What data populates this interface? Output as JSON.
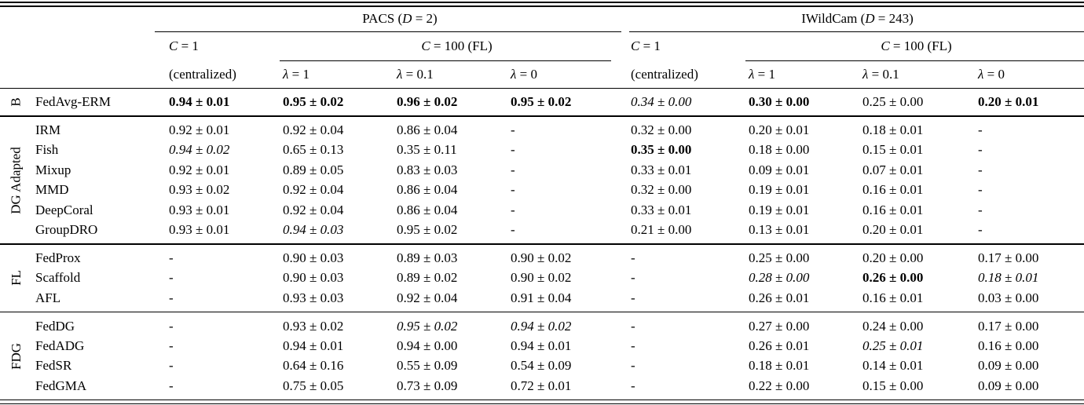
{
  "header": {
    "datasets": [
      {
        "prefix": "PACS (",
        "var": "D",
        "suffix": " = 2)"
      },
      {
        "prefix": "IWildCam (",
        "var": "D",
        "suffix": " = 243)"
      }
    ],
    "centralized": {
      "var": "C",
      "rest": " = 1",
      "sub": "(centralized)"
    },
    "federated": {
      "var": "C",
      "rest": " = 100 ",
      "tag": "(FL)"
    },
    "lambdas": [
      {
        "sym": "λ",
        "rest": " = 1"
      },
      {
        "sym": "λ",
        "rest": " = 0.1"
      },
      {
        "sym": "λ",
        "rest": " = 0"
      }
    ]
  },
  "body": {
    "groups": [
      {
        "label": "B",
        "rows": [
          {
            "method": "FedAvg-ERM",
            "cells": [
              {
                "v": "0.94 ± 0.01",
                "s": "bold"
              },
              {
                "v": "0.95 ± 0.02",
                "s": "bold"
              },
              {
                "v": "0.96 ± 0.02",
                "s": "bold"
              },
              {
                "v": "0.95 ± 0.02",
                "s": "bold"
              },
              {
                "v": "0.34 ± 0.00",
                "s": "italic"
              },
              {
                "v": "0.30 ± 0.00",
                "s": "bold"
              },
              {
                "v": "0.25 ± 0.00"
              },
              {
                "v": "0.20 ± 0.01",
                "s": "bold"
              }
            ]
          }
        ]
      },
      {
        "label": "DG Adapted",
        "rows": [
          {
            "method": "IRM",
            "cells": [
              {
                "v": "0.92 ± 0.01"
              },
              {
                "v": "0.92 ± 0.04"
              },
              {
                "v": "0.86 ± 0.04"
              },
              {
                "v": "-"
              },
              {
                "v": "0.32 ± 0.00"
              },
              {
                "v": "0.20 ± 0.01"
              },
              {
                "v": "0.18 ± 0.01"
              },
              {
                "v": "-"
              }
            ]
          },
          {
            "method": "Fish",
            "cells": [
              {
                "v": "0.94 ± 0.02",
                "s": "italic"
              },
              {
                "v": "0.65 ± 0.13"
              },
              {
                "v": "0.35 ± 0.11"
              },
              {
                "v": "-"
              },
              {
                "v": "0.35 ± 0.00",
                "s": "bold"
              },
              {
                "v": "0.18 ± 0.00"
              },
              {
                "v": "0.15 ± 0.01"
              },
              {
                "v": "-"
              }
            ]
          },
          {
            "method": "Mixup",
            "cells": [
              {
                "v": "0.92 ± 0.01"
              },
              {
                "v": "0.89 ± 0.05"
              },
              {
                "v": "0.83 ± 0.03"
              },
              {
                "v": "-"
              },
              {
                "v": "0.33 ± 0.01"
              },
              {
                "v": "0.09 ± 0.01"
              },
              {
                "v": "0.07 ± 0.01"
              },
              {
                "v": "-"
              }
            ]
          },
          {
            "method": "MMD",
            "cells": [
              {
                "v": "0.93 ± 0.02"
              },
              {
                "v": "0.92 ± 0.04"
              },
              {
                "v": "0.86 ± 0.04"
              },
              {
                "v": "-"
              },
              {
                "v": "0.32 ± 0.00"
              },
              {
                "v": "0.19 ± 0.01"
              },
              {
                "v": "0.16 ± 0.01"
              },
              {
                "v": "-"
              }
            ]
          },
          {
            "method": "DeepCoral",
            "cells": [
              {
                "v": "0.93 ± 0.01"
              },
              {
                "v": "0.92 ± 0.04"
              },
              {
                "v": "0.86 ± 0.04"
              },
              {
                "v": "-"
              },
              {
                "v": "0.33 ± 0.01"
              },
              {
                "v": "0.19 ± 0.01"
              },
              {
                "v": "0.16 ± 0.01"
              },
              {
                "v": "-"
              }
            ]
          },
          {
            "method": "GroupDRO",
            "cells": [
              {
                "v": "0.93 ± 0.01"
              },
              {
                "v": "0.94 ± 0.03",
                "s": "italic"
              },
              {
                "v": "0.95 ± 0.02"
              },
              {
                "v": "-"
              },
              {
                "v": "0.21 ± 0.00"
              },
              {
                "v": "0.13 ± 0.01"
              },
              {
                "v": "0.20 ± 0.01"
              },
              {
                "v": "-"
              }
            ]
          }
        ]
      },
      {
        "label": "FL",
        "rows": [
          {
            "method": "FedProx",
            "cells": [
              {
                "v": "-"
              },
              {
                "v": "0.90 ± 0.03"
              },
              {
                "v": "0.89 ± 0.03"
              },
              {
                "v": "0.90 ± 0.02"
              },
              {
                "v": "-"
              },
              {
                "v": "0.25 ± 0.00"
              },
              {
                "v": "0.20 ± 0.00"
              },
              {
                "v": "0.17 ± 0.00"
              }
            ]
          },
          {
            "method": "Scaffold",
            "cells": [
              {
                "v": "-"
              },
              {
                "v": "0.90 ± 0.03"
              },
              {
                "v": "0.89 ± 0.02"
              },
              {
                "v": "0.90 ± 0.02"
              },
              {
                "v": "-"
              },
              {
                "v": "0.28 ± 0.00",
                "s": "italic"
              },
              {
                "v": "0.26 ± 0.00",
                "s": "bold"
              },
              {
                "v": "0.18 ± 0.01",
                "s": "italic"
              }
            ]
          },
          {
            "method": "AFL",
            "cells": [
              {
                "v": "-"
              },
              {
                "v": "0.93 ± 0.03"
              },
              {
                "v": "0.92 ± 0.04"
              },
              {
                "v": "0.91 ± 0.04"
              },
              {
                "v": "-"
              },
              {
                "v": "0.26 ± 0.01"
              },
              {
                "v": "0.16 ± 0.01"
              },
              {
                "v": "0.03 ± 0.00"
              }
            ]
          }
        ]
      },
      {
        "label": "FDG",
        "rows": [
          {
            "method": "FedDG",
            "cells": [
              {
                "v": "-"
              },
              {
                "v": "0.93 ± 0.02"
              },
              {
                "v": "0.95 ± 0.02",
                "s": "italic"
              },
              {
                "v": "0.94 ± 0.02",
                "s": "italic"
              },
              {
                "v": "-"
              },
              {
                "v": "0.27 ± 0.00"
              },
              {
                "v": "0.24 ± 0.00"
              },
              {
                "v": "0.17 ± 0.00"
              }
            ]
          },
          {
            "method": "FedADG",
            "cells": [
              {
                "v": "-"
              },
              {
                "v": "0.94 ± 0.01"
              },
              {
                "v": "0.94 ± 0.00"
              },
              {
                "v": "0.94 ± 0.01"
              },
              {
                "v": "-"
              },
              {
                "v": "0.26 ± 0.01"
              },
              {
                "v": "0.25 ± 0.01",
                "s": "italic"
              },
              {
                "v": "0.16 ± 0.00"
              }
            ]
          },
          {
            "method": "FedSR",
            "cells": [
              {
                "v": "-"
              },
              {
                "v": "0.64 ± 0.16"
              },
              {
                "v": "0.55 ± 0.09"
              },
              {
                "v": "0.54 ± 0.09"
              },
              {
                "v": "-"
              },
              {
                "v": "0.18 ± 0.01"
              },
              {
                "v": "0.14 ± 0.01"
              },
              {
                "v": "0.09 ± 0.00"
              }
            ]
          },
          {
            "method": "FedGMA",
            "cells": [
              {
                "v": "-"
              },
              {
                "v": "0.75 ± 0.05"
              },
              {
                "v": "0.73 ± 0.09"
              },
              {
                "v": "0.72 ± 0.01"
              },
              {
                "v": "-"
              },
              {
                "v": "0.22 ± 0.00"
              },
              {
                "v": "0.15 ± 0.00"
              },
              {
                "v": "0.09 ± 0.00"
              }
            ]
          }
        ]
      }
    ]
  }
}
